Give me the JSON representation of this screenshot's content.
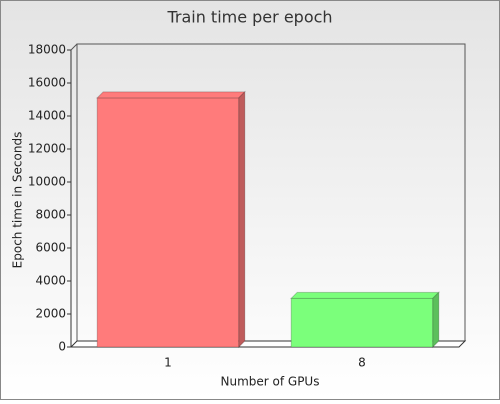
{
  "chart_data": {
    "type": "bar",
    "title": "Train time per epoch",
    "x_label": "Number of GPUs",
    "y_label": "Epoch time in Seconds",
    "categories": [
      "1",
      "8"
    ],
    "values": [
      15100,
      2950
    ],
    "colors": [
      "#ff7b7b",
      "#7bff7b"
    ],
    "ylim": [
      0,
      18000
    ],
    "yticks": [
      0,
      2000,
      4000,
      6000,
      8000,
      10000,
      12000,
      14000,
      16000,
      18000
    ],
    "grid": false
  }
}
